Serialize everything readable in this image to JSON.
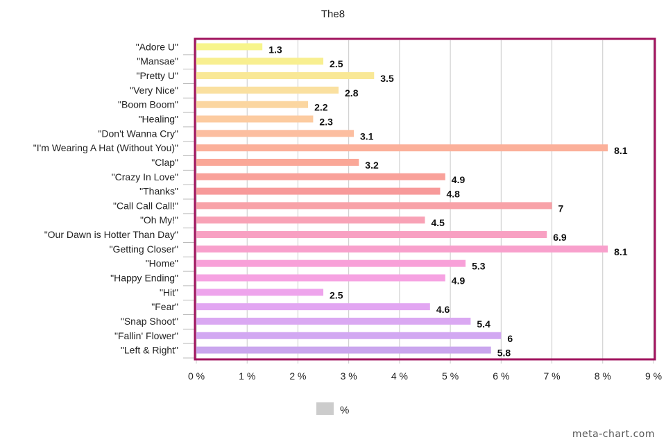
{
  "chart_data": {
    "type": "bar",
    "orientation": "horizontal",
    "title": "The8",
    "categories": [
      "\"Adore U\"",
      "\"Mansae\"",
      "\"Pretty U\"",
      "\"Very Nice\"",
      "\"Boom Boom\"",
      "\"Healing\"",
      "\"Don't Wanna Cry\"",
      "\"I'm Wearing A Hat (Without You)\"",
      "\"Clap\"",
      "\"Crazy In Love\"",
      "\"Thanks\"",
      "\"Call Call Call!\"",
      "\"Oh My!\"",
      "\"Our Dawn is Hotter Than Day\"",
      "\"Getting Closer\"",
      "\"Home\"",
      "\"Happy Ending\"",
      "\"Hit\"",
      "\"Fear\"",
      "\"Snap Shoot\"",
      "\"Fallin' Flower\"",
      "\"Left & Right\""
    ],
    "values": [
      1.3,
      2.5,
      3.5,
      2.8,
      2.2,
      2.3,
      3.1,
      8.1,
      3.2,
      4.9,
      4.8,
      7,
      4.5,
      6.9,
      8.1,
      5.3,
      4.9,
      2.5,
      4.6,
      5.4,
      6,
      5.8
    ],
    "value_labels": [
      "1.3",
      "2.5",
      "3.5",
      "2.8",
      "2.2",
      "2.3",
      "3.1",
      "8.1",
      "3.2",
      "4.9",
      "4.8",
      "7",
      "4.5",
      "6.9",
      "8.1",
      "5.3",
      "4.9",
      "2.5",
      "4.6",
      "5.4",
      "6",
      "5.8"
    ],
    "bar_colors": [
      "#f7f58c",
      "#f8ef90",
      "#f9e896",
      "#fae0a0",
      "#fbd6a0",
      "#fccba0",
      "#fcbea0",
      "#fbb09a",
      "#faa797",
      "#f9a19a",
      "#f79a9a",
      "#f8a2a8",
      "#f8a2b6",
      "#f8a0c2",
      "#f8a0cc",
      "#f8a0d8",
      "#f6a2e2",
      "#eea4ec",
      "#e2a6f2",
      "#daa8f2",
      "#d2a8f2",
      "#caa6ee"
    ],
    "xlim": [
      0,
      9
    ],
    "x_ticks": [
      0,
      1,
      2,
      3,
      4,
      5,
      6,
      7,
      8,
      9
    ],
    "x_tick_labels": [
      "0 %",
      "1 %",
      "2 %",
      "3 %",
      "4 %",
      "5 %",
      "6 %",
      "7 %",
      "8 %",
      "9 %"
    ],
    "xlabel": "",
    "ylabel": "",
    "grid": true,
    "legend": {
      "entries": [
        "%"
      ],
      "position": "bottom-center",
      "swatch_color": "#cccccc"
    },
    "frame_color": "#a0135e"
  },
  "watermark": "meta-chart.com"
}
